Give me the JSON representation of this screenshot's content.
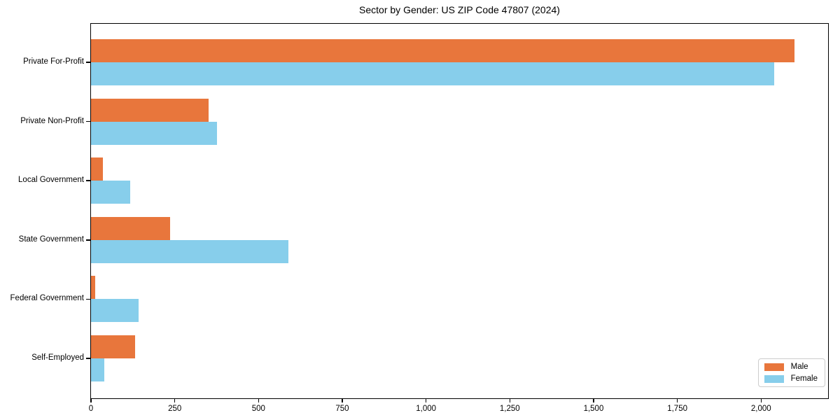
{
  "title": "Sector by Gender: US ZIP Code 47807 (2024)",
  "colors": {
    "male": "#E8763C",
    "female": "#87CEEB",
    "axis": "#000000",
    "legend_border": "#CCCCCC",
    "background": "#FFFFFF"
  },
  "chart_data": {
    "type": "bar",
    "orientation": "horizontal",
    "title": "Sector by Gender: US ZIP Code 47807 (2024)",
    "categories": [
      "Private For-Profit",
      "Private Non-Profit",
      "Local Government",
      "State Government",
      "Federal Government",
      "Self-Employed"
    ],
    "series": [
      {
        "name": "Male",
        "color": "#E8763C",
        "values": [
          2100,
          350,
          35,
          237,
          13,
          131
        ]
      },
      {
        "name": "Female",
        "color": "#87CEEB",
        "values": [
          2040,
          377,
          116,
          589,
          143,
          40
        ]
      }
    ],
    "xlabel": "",
    "ylabel": "",
    "xlim": [
      0,
      2200
    ],
    "xticks": [
      0,
      250,
      500,
      750,
      1000,
      1250,
      1500,
      1750,
      2000
    ],
    "xtick_labels": [
      "0",
      "250",
      "500",
      "750",
      "1,000",
      "1,250",
      "1,500",
      "1,750",
      "2,000"
    ],
    "grid": false,
    "legend": {
      "position": "lower right"
    }
  }
}
